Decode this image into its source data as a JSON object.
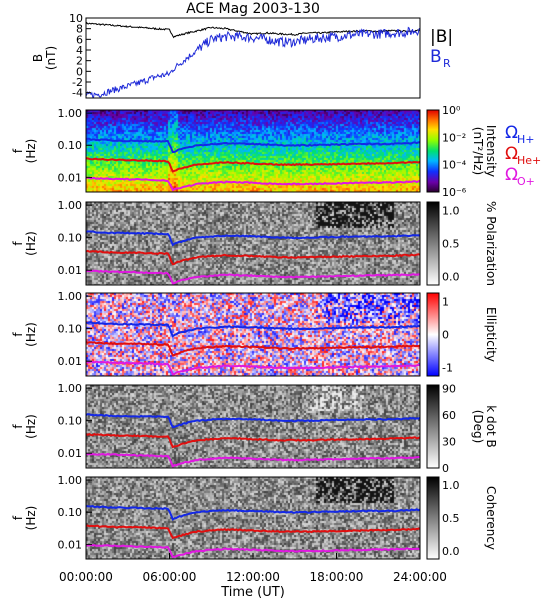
{
  "title": "ACE Mag 2003-130",
  "xlabel": "Time (UT)",
  "x_ticks": [
    "00:00:00",
    "06:00:00",
    "12:00:00",
    "18:00:00",
    "24:00:00"
  ],
  "legend": {
    "b_total": "|B|",
    "b_r": "B",
    "b_r_sub": "R",
    "omega_symbol": "Ω",
    "h_sub": "H+",
    "he_sub": "He+",
    "o_sub": "O+"
  },
  "colors": {
    "b_total": "#000000",
    "b_r": "#1f2ad8",
    "h": "#1428e6",
    "he": "#e00f0f",
    "o": "#e018e0"
  },
  "chart_data": [
    {
      "type": "line",
      "id": "field",
      "ylabel": "B",
      "ylabel2": "(nT)",
      "y_ticks": [
        "10",
        "8",
        "6",
        "4",
        "2",
        "0",
        "-2",
        "-4"
      ],
      "ylim": [
        -5,
        10
      ],
      "x_hours": [
        0,
        1,
        2,
        3,
        4,
        5,
        6,
        6.3,
        7,
        8,
        9,
        10,
        11,
        12,
        13,
        14,
        15,
        16,
        17,
        18,
        19,
        20,
        21,
        22,
        23,
        24
      ],
      "series": [
        {
          "key": "b_total",
          "values": [
            9.0,
            8.8,
            8.6,
            8.4,
            8.2,
            8.0,
            7.8,
            6.5,
            7.0,
            7.6,
            8.2,
            8.0,
            7.5,
            7.0,
            7.2,
            7.0,
            6.9,
            7.2,
            7.2,
            7.4,
            7.5,
            7.6,
            7.5,
            7.6,
            7.5,
            7.7
          ]
        },
        {
          "key": "b_r",
          "values": [
            -4.5,
            -4.3,
            -3.5,
            -2.8,
            -2.0,
            -1.0,
            -0.5,
            0.5,
            2.0,
            4.0,
            6.0,
            6.5,
            6.5,
            6.3,
            6.0,
            5.5,
            5.5,
            6.0,
            6.3,
            6.5,
            6.8,
            7.0,
            7.0,
            7.2,
            7.3,
            7.8
          ]
        }
      ]
    },
    {
      "type": "heatmap",
      "id": "intensity",
      "ylabel": "f",
      "ylabel2": "(Hz)",
      "y_ticks": [
        "1.00",
        "0.10",
        "0.01"
      ],
      "colorbar_label": "Intensity",
      "colorbar_label2": "(nT²/Hz)",
      "colorbar_ticks": [
        "10⁰",
        "10⁻²",
        "10⁻⁴",
        "10⁻⁶"
      ]
    },
    {
      "type": "heatmap",
      "id": "polarization",
      "ylabel": "f",
      "ylabel2": "(Hz)",
      "y_ticks": [
        "1.00",
        "0.10",
        "0.01"
      ],
      "colorbar_label": "% Polarization",
      "colorbar_ticks": [
        "1.0",
        "0.5",
        "0.0"
      ]
    },
    {
      "type": "heatmap",
      "id": "ellipticity",
      "ylabel": "f",
      "ylabel2": "(Hz)",
      "y_ticks": [
        "1.00",
        "0.10",
        "0.01"
      ],
      "colorbar_label": "Ellipticity",
      "colorbar_ticks": [
        "1",
        "0",
        "-1"
      ]
    },
    {
      "type": "heatmap",
      "id": "kdotb",
      "ylabel": "f",
      "ylabel2": "(Hz)",
      "y_ticks": [
        "1.00",
        "0.10",
        "0.01"
      ],
      "colorbar_label": "k dot B",
      "colorbar_label2": "(Deg)",
      "colorbar_ticks": [
        "90",
        "60",
        "30",
        "0"
      ]
    },
    {
      "type": "heatmap",
      "id": "coherency",
      "ylabel": "f",
      "ylabel2": "(Hz)",
      "y_ticks": [
        "1.00",
        "0.10",
        "0.01"
      ],
      "colorbar_label": "Coherency",
      "colorbar_ticks": [
        "1.0",
        "0.5",
        "0.0"
      ]
    }
  ],
  "gyro_lines": {
    "x_hours": [
      0,
      2,
      4,
      5.9,
      6.2,
      7,
      8,
      10,
      12,
      14,
      16,
      18,
      20,
      22,
      24
    ],
    "h": [
      0.155,
      0.14,
      0.135,
      0.13,
      0.06,
      0.08,
      0.1,
      0.115,
      0.11,
      0.1,
      0.1,
      0.105,
      0.11,
      0.11,
      0.12
    ],
    "he": [
      0.038,
      0.035,
      0.034,
      0.032,
      0.015,
      0.02,
      0.025,
      0.029,
      0.027,
      0.025,
      0.025,
      0.026,
      0.027,
      0.028,
      0.03
    ],
    "o": [
      0.0095,
      0.009,
      0.0085,
      0.008,
      0.004,
      0.005,
      0.0062,
      0.0072,
      0.0068,
      0.0062,
      0.0062,
      0.0065,
      0.0068,
      0.007,
      0.0075
    ]
  }
}
